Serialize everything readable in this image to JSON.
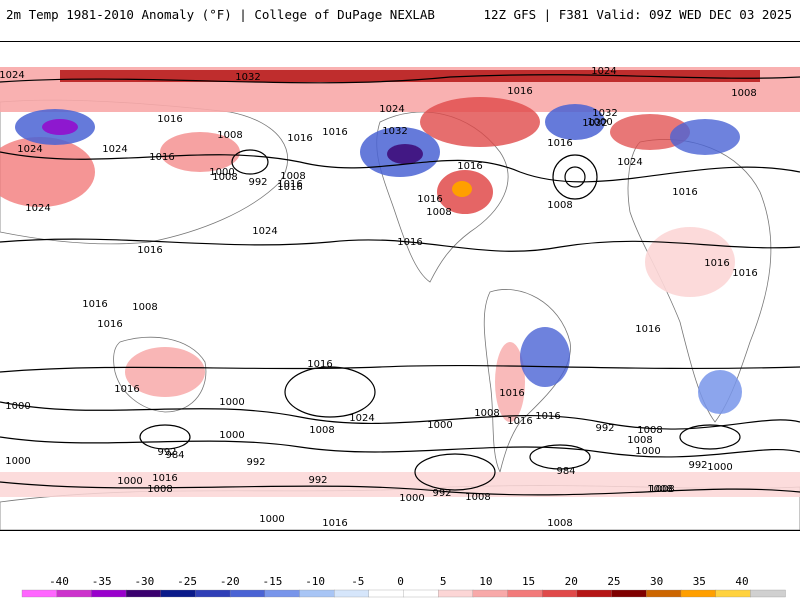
{
  "header": {
    "title": "2m Temp 1981-2010 Anomaly (°F) | College of DuPage NEXLAB",
    "run": "12Z GFS | F381 Valid: 09Z WED DEC 03 2025"
  },
  "map": {
    "isobar_labels": [
      "1024",
      "1032",
      "1024",
      "1024",
      "1008",
      "1032",
      "1016",
      "1024",
      "1024",
      "1016",
      "1008",
      "1016",
      "1000",
      "992",
      "1008",
      "1016",
      "1024",
      "1016",
      "1016",
      "1024",
      "1016",
      "1016",
      "1016",
      "1008",
      "1016",
      "1032",
      "1000",
      "1016",
      "1032",
      "1008",
      "1016",
      "1024",
      "1008",
      "1016",
      "1016",
      "1008",
      "1016",
      "1016",
      "1016",
      "1016",
      "1000",
      "1024",
      "1016",
      "1000",
      "1008",
      "1000",
      "992",
      "1000",
      "984",
      "992",
      "1000",
      "1008",
      "992",
      "1000",
      "1000",
      "1008",
      "1016",
      "1008",
      "1016",
      "1016",
      "1016",
      "1000",
      "992",
      "1008",
      "1000",
      "1016",
      "1008",
      "1008",
      "984",
      "992",
      "1008",
      "992",
      "1000",
      "1008",
      "1016"
    ]
  },
  "legend": {
    "colors": [
      "#ff66ff",
      "#cc33cc",
      "#9900cc",
      "#3a006e",
      "#0a1a8a",
      "#2f3fb7",
      "#4a63d4",
      "#7895ea",
      "#a8c5f5",
      "#d6e6fb",
      "#ffffff",
      "#ffffff",
      "#fcd6d6",
      "#f8a9a9",
      "#f27a7a",
      "#e04a4a",
      "#b51616",
      "#7f0000",
      "#cc6600",
      "#ff9f00",
      "#ffd23f",
      "#d0d0d0"
    ],
    "ticks": [
      "-40",
      "-35",
      "-30",
      "-25",
      "-20",
      "-15",
      "-10",
      "-5",
      "0",
      "5",
      "10",
      "15",
      "20",
      "25",
      "30",
      "35",
      "40"
    ]
  }
}
